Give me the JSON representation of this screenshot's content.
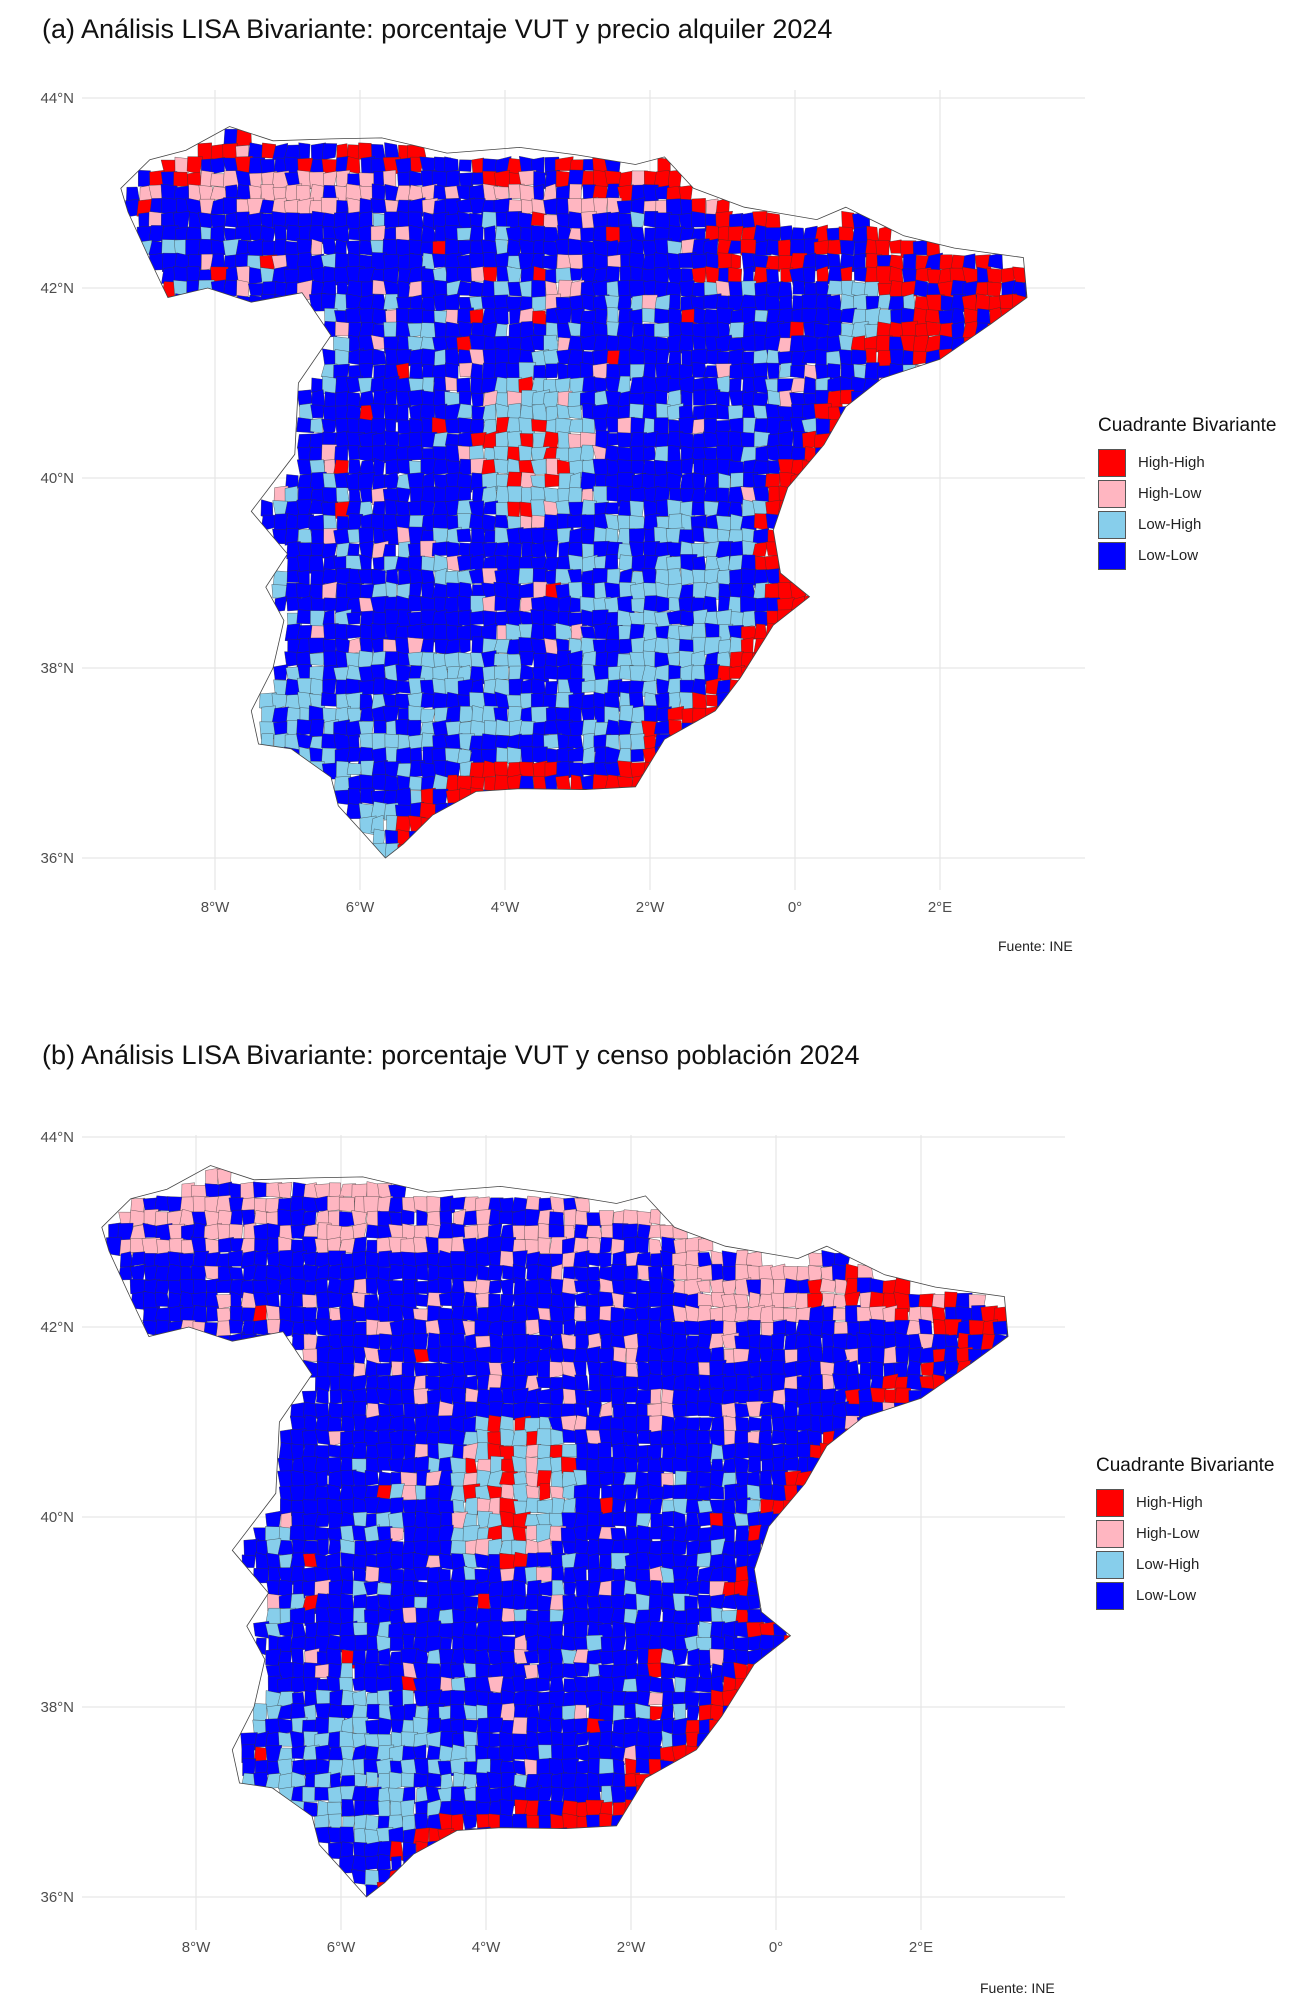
{
  "panels": [
    {
      "title": "(a) Análisis LISA Bivariante: porcentaje VUT y precio alquiler 2024",
      "legend_title": "Cuadrante Bivariante",
      "source": "Fuente: INE"
    },
    {
      "title": "(b) Análisis LISA Bivariante: porcentaje VUT y censo población 2024",
      "legend_title": "Cuadrante Bivariante",
      "source": "Fuente: INE"
    }
  ],
  "legend_items": [
    {
      "label": "High-High",
      "color": "#ff0000"
    },
    {
      "label": "High-Low",
      "color": "#ffb6c1"
    },
    {
      "label": "Low-High",
      "color": "#87ceeb"
    },
    {
      "label": "Low-Low",
      "color": "#0000ff"
    }
  ],
  "axes": {
    "lat_ticks": [
      "44°N",
      "42°N",
      "40°N",
      "38°N",
      "36°N"
    ],
    "lon_ticks": [
      "8°W",
      "6°W",
      "4°W",
      "2°W",
      "0°",
      "2°E"
    ],
    "lat_values": [
      44,
      42,
      40,
      38,
      36
    ],
    "lon_values": [
      -8,
      -6,
      -4,
      -2,
      0,
      2
    ]
  },
  "map": {
    "region": "Spain (mainland)",
    "colors": {
      "outline": "#333333",
      "grid": "#e6e6e6"
    }
  }
}
